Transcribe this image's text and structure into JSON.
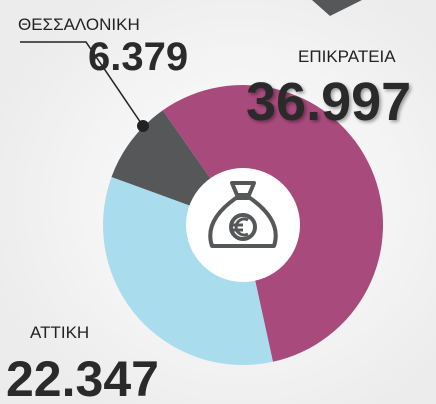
{
  "chart_data": {
    "type": "pie",
    "categories": [
      "ΕΠΙΚΡΑΤΕΙΑ",
      "ΑΤΤΙΚΗ",
      "ΘΕΣΣΑΛΟΝΙΚΗ"
    ],
    "values": [
      36.997,
      22.347,
      6.379
    ],
    "colors": [
      "#a84a7c",
      "#a9dced",
      "#555759"
    ]
  }
}
